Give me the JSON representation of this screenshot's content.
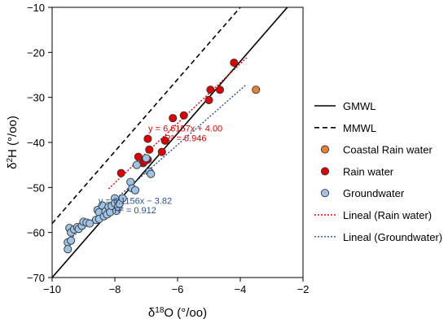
{
  "chart_data": {
    "type": "scatter",
    "xlabel": "δ18O (°/oo)",
    "ylabel": "δ2H (°/oo)",
    "xlim": [
      -10,
      -2
    ],
    "ylim": [
      -70,
      -10
    ],
    "x_ticks": [
      "−10",
      "−8",
      "−6",
      "−4",
      "−2"
    ],
    "y_ticks": [
      "−70",
      "−60",
      "−50",
      "−40",
      "−30",
      "−20",
      "−10"
    ],
    "x_tick_values": [
      -10,
      -8,
      -6,
      -4,
      -2
    ],
    "y_tick_values": [
      -70,
      -60,
      -50,
      -40,
      -30,
      -20,
      -10
    ],
    "grid": false,
    "legend_position": "right",
    "series": [
      {
        "name": "GMWL",
        "kind": "line",
        "style": "solid",
        "color": "#000000",
        "x": [
          -10,
          -2
        ],
        "y": [
          -70,
          -6
        ]
      },
      {
        "name": "MMWL",
        "kind": "line",
        "style": "dashed",
        "color": "#000000",
        "x": [
          -10,
          -2
        ],
        "y": [
          -58,
          6
        ]
      },
      {
        "name": "Coastal Rain water",
        "kind": "scatter",
        "color": "#ED7D31",
        "x": [
          -3.5
        ],
        "y": [
          -28.3
        ]
      },
      {
        "name": "Rain water",
        "kind": "scatter",
        "color": "#E00000",
        "x": [
          -7.8,
          -7.25,
          -7.1,
          -6.95,
          -6.9,
          -6.95,
          -6.5,
          -6.4,
          -6.15,
          -5.8,
          -5.0,
          -4.95,
          -4.65,
          -4.2,
          -7.05
        ],
        "y": [
          -46.8,
          -43.2,
          -44.6,
          -43.8,
          -41.6,
          -39.2,
          -42.1,
          -39.6,
          -34.6,
          -34.0,
          -30.6,
          -28.3,
          -28.3,
          -22.3,
          -44.2
        ]
      },
      {
        "name": "Groundwater",
        "kind": "scatter",
        "color": "#9DC3E6",
        "x": [
          -9.5,
          -9.5,
          -9.45,
          -9.4,
          -9.4,
          -9.3,
          -9.2,
          -9.15,
          -9.05,
          -9.0,
          -8.9,
          -8.8,
          -8.6,
          -8.55,
          -8.5,
          -8.5,
          -8.4,
          -8.35,
          -8.3,
          -8.25,
          -8.2,
          -8.15,
          -8.1,
          -8.0,
          -8.0,
          -7.95,
          -7.9,
          -7.85,
          -7.75,
          -7.5,
          -7.45,
          -7.35,
          -7.3,
          -7.0,
          -6.9,
          -6.85
        ],
        "y": [
          -62.2,
          -63.7,
          -59.0,
          -60.0,
          -61.8,
          -59.3,
          -58.8,
          -59.2,
          -58.5,
          -57.6,
          -57.8,
          -58.0,
          -57.2,
          -55.0,
          -55.5,
          -57.0,
          -54.0,
          -56.4,
          -55.3,
          -56.0,
          -54.3,
          -55.5,
          -54.1,
          -52.4,
          -53.5,
          -55.2,
          -54.3,
          -53.6,
          -52.4,
          -48.8,
          -50.2,
          -50.6,
          -45.0,
          -43.5,
          -46.5,
          -47.0
        ]
      },
      {
        "name": "Lineal (Rain water)",
        "kind": "trend",
        "style": "dotted",
        "color": "#E00000",
        "x": [
          -8.2,
          -3.8
        ],
        "y": [
          -50.3,
          -21.2
        ]
      },
      {
        "name": "Lineal (Groundwater)",
        "kind": "trend",
        "style": "dotted",
        "color": "#2F4F8F",
        "x": [
          -9.5,
          -3.8
        ],
        "y": [
          -61.9,
          -27.1
        ]
      }
    ],
    "annotations": [
      {
        "text": "y = 6.6157x + 4.00",
        "color": "#E00000",
        "x": -5.75,
        "y": -37.6
      },
      {
        "text": "R² = 0.946",
        "color": "#E00000",
        "x": -5.75,
        "y": -39.7
      },
      {
        "text": "y = 6.1156x − 3.82",
        "color": "#2F4F8F",
        "x": -7.35,
        "y": -53.6
      },
      {
        "text": "R² = 0.912",
        "color": "#2F4F8F",
        "x": -7.35,
        "y": -55.7
      }
    ]
  }
}
